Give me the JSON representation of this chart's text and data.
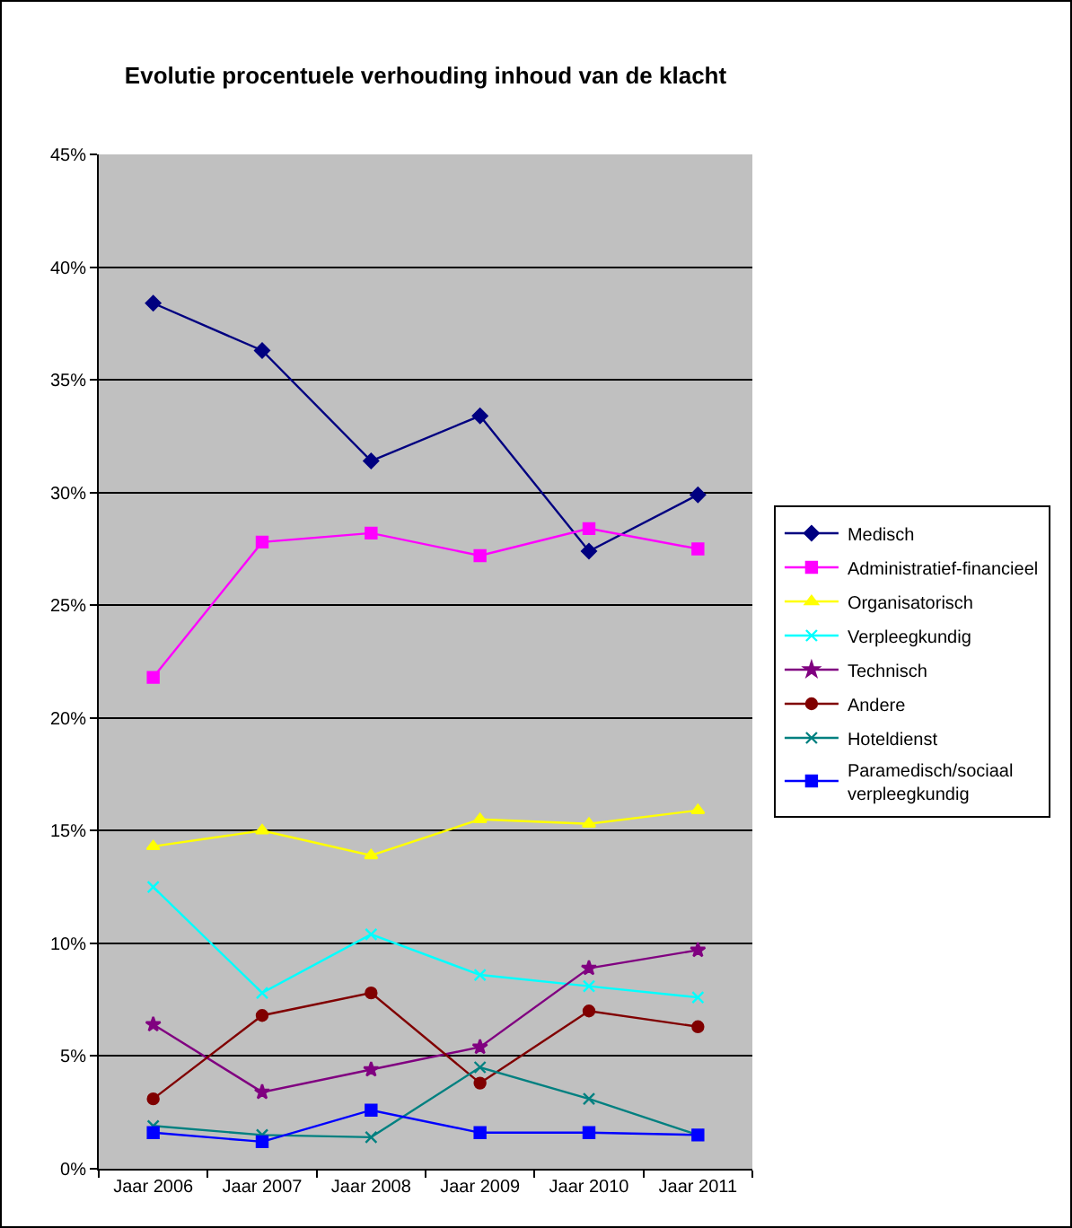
{
  "chart_data": {
    "type": "line",
    "title": "Evolutie procentuele verhouding inhoud van de klacht",
    "categories": [
      "Jaar 2006",
      "Jaar 2007",
      "Jaar 2008",
      "Jaar 2009",
      "Jaar 2010",
      "Jaar 2011"
    ],
    "series": [
      {
        "name": "Medisch",
        "color": "#000080",
        "marker": "diamond",
        "values": [
          38.4,
          36.3,
          31.4,
          33.4,
          27.4,
          29.9
        ]
      },
      {
        "name": "Administratief-financieel",
        "color": "#ff00ff",
        "marker": "square",
        "values": [
          21.8,
          27.8,
          28.2,
          27.2,
          28.4,
          27.5
        ]
      },
      {
        "name": "Organisatorisch",
        "color": "#ffff00",
        "marker": "triangle",
        "values": [
          14.3,
          15.0,
          13.9,
          15.5,
          15.3,
          15.9
        ]
      },
      {
        "name": "Verpleegkundig",
        "color": "#00ffff",
        "marker": "cross",
        "values": [
          12.5,
          7.8,
          10.4,
          8.6,
          8.1,
          7.6
        ]
      },
      {
        "name": "Technisch",
        "color": "#800080",
        "marker": "star",
        "values": [
          6.4,
          3.4,
          4.4,
          5.4,
          8.9,
          9.7
        ]
      },
      {
        "name": "Andere",
        "color": "#800000",
        "marker": "circle",
        "values": [
          3.1,
          6.8,
          7.8,
          3.8,
          7.0,
          6.3
        ]
      },
      {
        "name": "Hoteldienst",
        "color": "#008080",
        "marker": "cross",
        "values": [
          1.9,
          1.5,
          1.4,
          4.5,
          3.1,
          1.5
        ]
      },
      {
        "name": "Paramedisch/sociaal verpleegkundig",
        "color": "#0000ff",
        "marker": "square",
        "values": [
          1.6,
          1.2,
          2.6,
          1.6,
          1.6,
          1.5
        ]
      }
    ],
    "ylim": [
      0,
      45
    ],
    "yticks": [
      {
        "value": 0,
        "label": "0%"
      },
      {
        "value": 5,
        "label": "5%"
      },
      {
        "value": 10,
        "label": "10%"
      },
      {
        "value": 15,
        "label": "15%"
      },
      {
        "value": 20,
        "label": "20%"
      },
      {
        "value": 25,
        "label": "25%"
      },
      {
        "value": 30,
        "label": "30%"
      },
      {
        "value": 35,
        "label": "35%"
      },
      {
        "value": 40,
        "label": "40%"
      },
      {
        "value": 45,
        "label": "45%"
      }
    ],
    "grid": "y",
    "legend": "right",
    "line_style": "solid"
  }
}
